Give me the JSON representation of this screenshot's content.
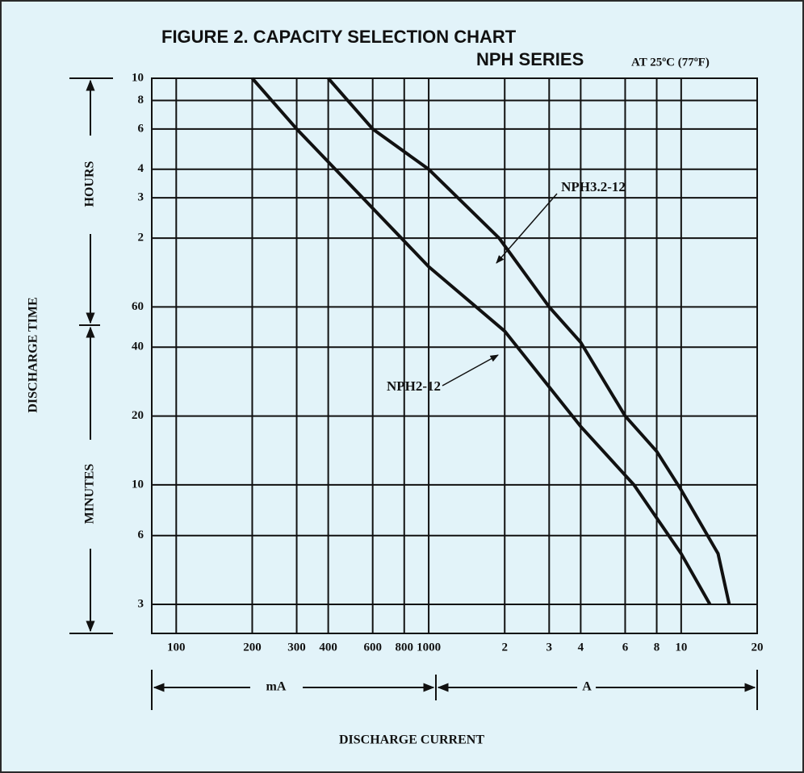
{
  "chart_data": {
    "type": "line",
    "title": "FIGURE 2. CAPACITY SELECTION CHART",
    "subtitle": "NPH SERIES",
    "condition": "AT 25ºC (77ºF)",
    "xlabel": "DISCHARGE CURRENT",
    "ylabel": "DISCHARGE TIME",
    "x_unit_labels": [
      "mA",
      "A"
    ],
    "y_segment_labels": [
      "HOURS",
      "MINUTES"
    ],
    "xscale": "log",
    "yscale": "log",
    "grid": true,
    "xlim": [
      80,
      20000
    ],
    "ylim": [
      2.24,
      600
    ],
    "xticks": [
      100,
      200,
      300,
      400,
      600,
      800,
      1000,
      {
        "value": 2000,
        "label": "2"
      },
      {
        "value": 3000,
        "label": "3"
      },
      {
        "value": 4000,
        "label": "4"
      },
      {
        "value": 6000,
        "label": "6"
      },
      {
        "value": 8000,
        "label": "8"
      },
      {
        "value": 10000,
        "label": "10"
      },
      {
        "value": 20000,
        "label": "20"
      }
    ],
    "yticks": [
      {
        "value": 600,
        "label": "10"
      },
      {
        "value": 480,
        "label": "8"
      },
      {
        "value": 360,
        "label": "6"
      },
      {
        "value": 240,
        "label": "4"
      },
      {
        "value": 180,
        "label": "3"
      },
      {
        "value": 120,
        "label": "2"
      },
      60,
      40,
      20,
      10,
      6,
      3
    ],
    "series": [
      {
        "name": "NPH2-12",
        "color": "#111111",
        "x": [
          200,
          300,
          1000,
          2000,
          4000,
          6500,
          10000,
          13000
        ],
        "values": [
          600,
          360,
          90,
          47,
          18,
          10,
          5,
          3
        ]
      },
      {
        "name": "NPH3.2-12",
        "color": "#111111",
        "x": [
          400,
          600,
          1000,
          1900,
          3000,
          4000,
          6000,
          8000,
          10000,
          14000,
          15500
        ],
        "values": [
          600,
          360,
          240,
          120,
          60,
          42,
          20,
          14,
          9.5,
          5,
          3
        ]
      }
    ]
  }
}
